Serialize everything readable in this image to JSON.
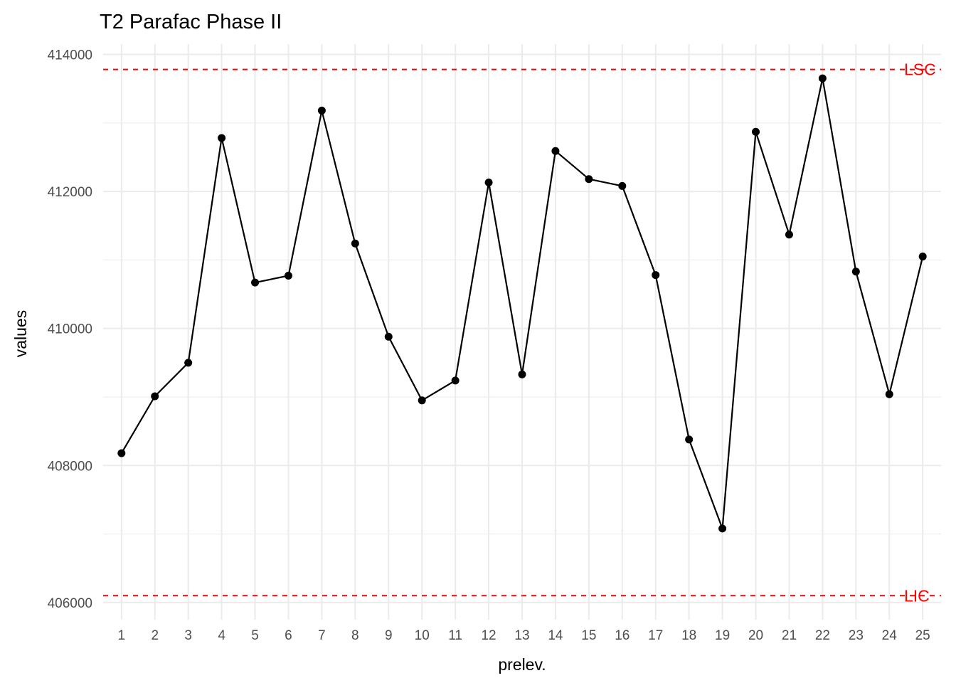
{
  "chart_data": {
    "type": "line",
    "title": "T2 Parafac Phase II",
    "xlabel": "prelev.",
    "ylabel": "values",
    "x": [
      1,
      2,
      3,
      4,
      5,
      6,
      7,
      8,
      9,
      10,
      11,
      12,
      13,
      14,
      15,
      16,
      17,
      18,
      19,
      20,
      21,
      22,
      23,
      24,
      25
    ],
    "x_ticks": [
      "1",
      "2",
      "3",
      "4",
      "5",
      "6",
      "7",
      "8",
      "9",
      "10",
      "11",
      "12",
      "13",
      "14",
      "15",
      "16",
      "17",
      "18",
      "19",
      "20",
      "21",
      "22",
      "23",
      "24",
      "25"
    ],
    "values": [
      408180,
      409010,
      409500,
      412780,
      410670,
      410770,
      413180,
      411240,
      409880,
      408950,
      409240,
      412130,
      409330,
      412590,
      412180,
      412080,
      410780,
      408380,
      407080,
      412870,
      411370,
      413650,
      410830,
      409040,
      411050
    ],
    "y_ticks": [
      "406000",
      "408000",
      "410000",
      "412000",
      "414000"
    ],
    "y_tick_values": [
      406000,
      408000,
      410000,
      412000,
      414000
    ],
    "xlim": [
      0.45,
      25.55
    ],
    "ylim": [
      405750,
      414150
    ],
    "grid": true,
    "line_color": "#000000",
    "limits": [
      {
        "label": "LSC",
        "value": 413780,
        "color": "#ff0000"
      },
      {
        "label": "LIC",
        "value": 406100,
        "color": "#ff0000"
      }
    ]
  }
}
